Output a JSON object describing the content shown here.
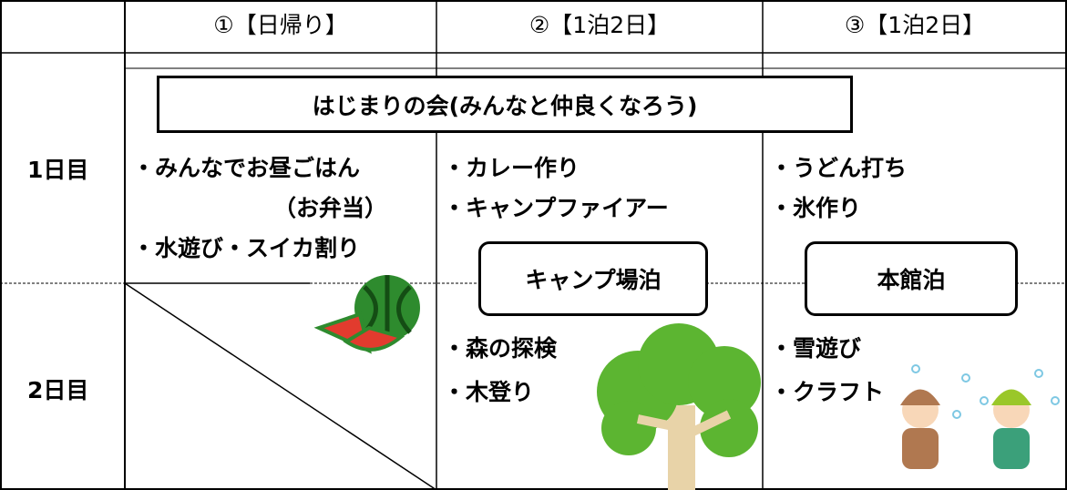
{
  "header": {
    "columns": [
      "①【日帰り】",
      "②【1泊2日】",
      "③【1泊2日】"
    ]
  },
  "banner": "はじまりの会(みんなと仲良くなろう)",
  "days": [
    "1日目",
    "2日目"
  ],
  "plans": [
    {
      "day1": [
        "・みんなでお昼ごはん",
        "（お弁当）",
        "・水遊び・スイカ割り"
      ]
    },
    {
      "day1": [
        "・カレー作り",
        "・キャンプファイアー"
      ],
      "stay": "キャンプ場泊",
      "day2": [
        "・森の探検",
        "・木登り"
      ]
    },
    {
      "day1": [
        "・うどん打ち",
        "・氷作り"
      ],
      "stay": "本館泊",
      "day2": [
        "・雪遊び",
        "・クラフト"
      ]
    }
  ]
}
